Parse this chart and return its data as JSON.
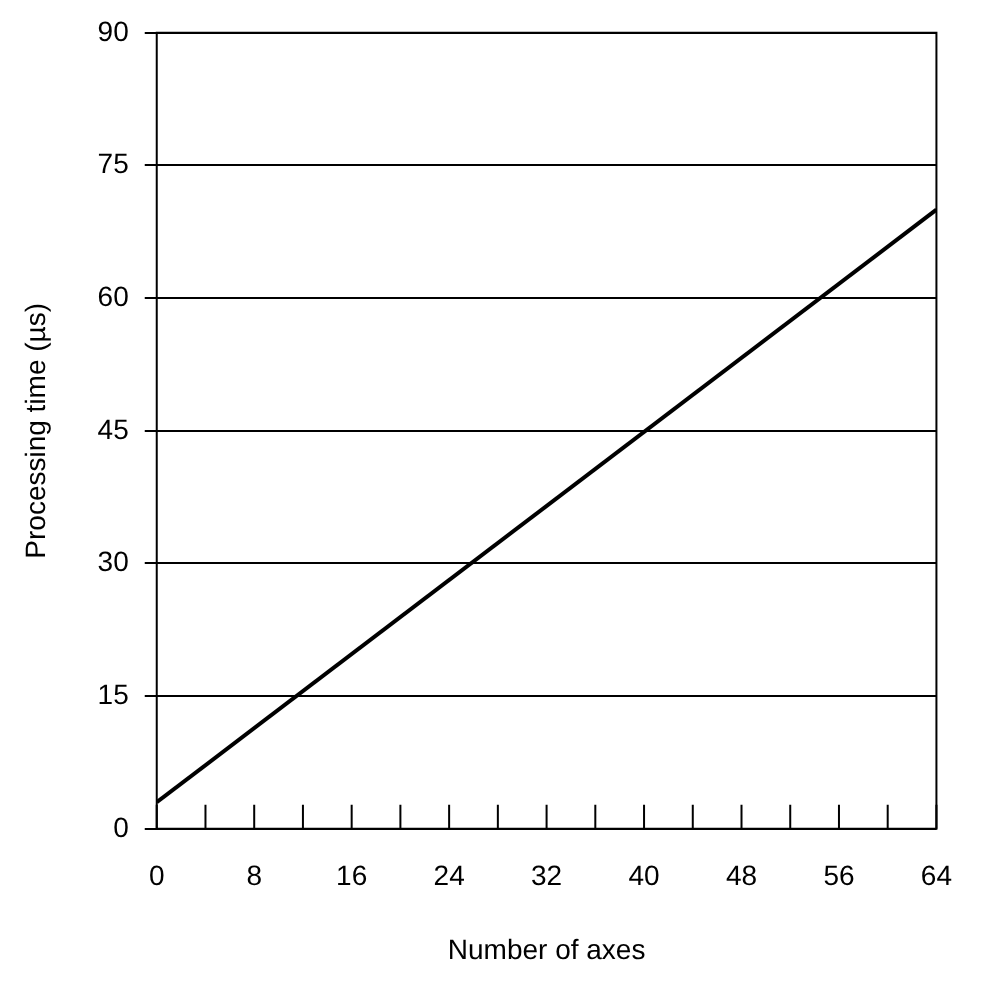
{
  "chart_data": {
    "type": "line",
    "xlabel": "Number of axes",
    "ylabel": "Processing time (µs)",
    "x": [
      0,
      64
    ],
    "series": [
      {
        "color": "#000000",
        "values": [
          3,
          70
        ]
      }
    ],
    "xlim": [
      0,
      64
    ],
    "ylim": [
      0,
      90
    ],
    "xticks": [
      0,
      {
        "value": 4,
        "label": null
      },
      8,
      {
        "value": 12,
        "label": null
      },
      16,
      {
        "value": 20,
        "label": null
      },
      24,
      {
        "value": 28,
        "label": null
      },
      32,
      {
        "value": 36,
        "label": null
      },
      40,
      {
        "value": 44,
        "label": null
      },
      48,
      {
        "value": 52,
        "label": null
      },
      56,
      {
        "value": 60,
        "label": null
      },
      64
    ],
    "yticks": [
      0,
      15,
      30,
      45,
      60,
      75,
      90
    ],
    "grid": "y",
    "marker": "none",
    "line_style": "solid",
    "legend": false
  }
}
